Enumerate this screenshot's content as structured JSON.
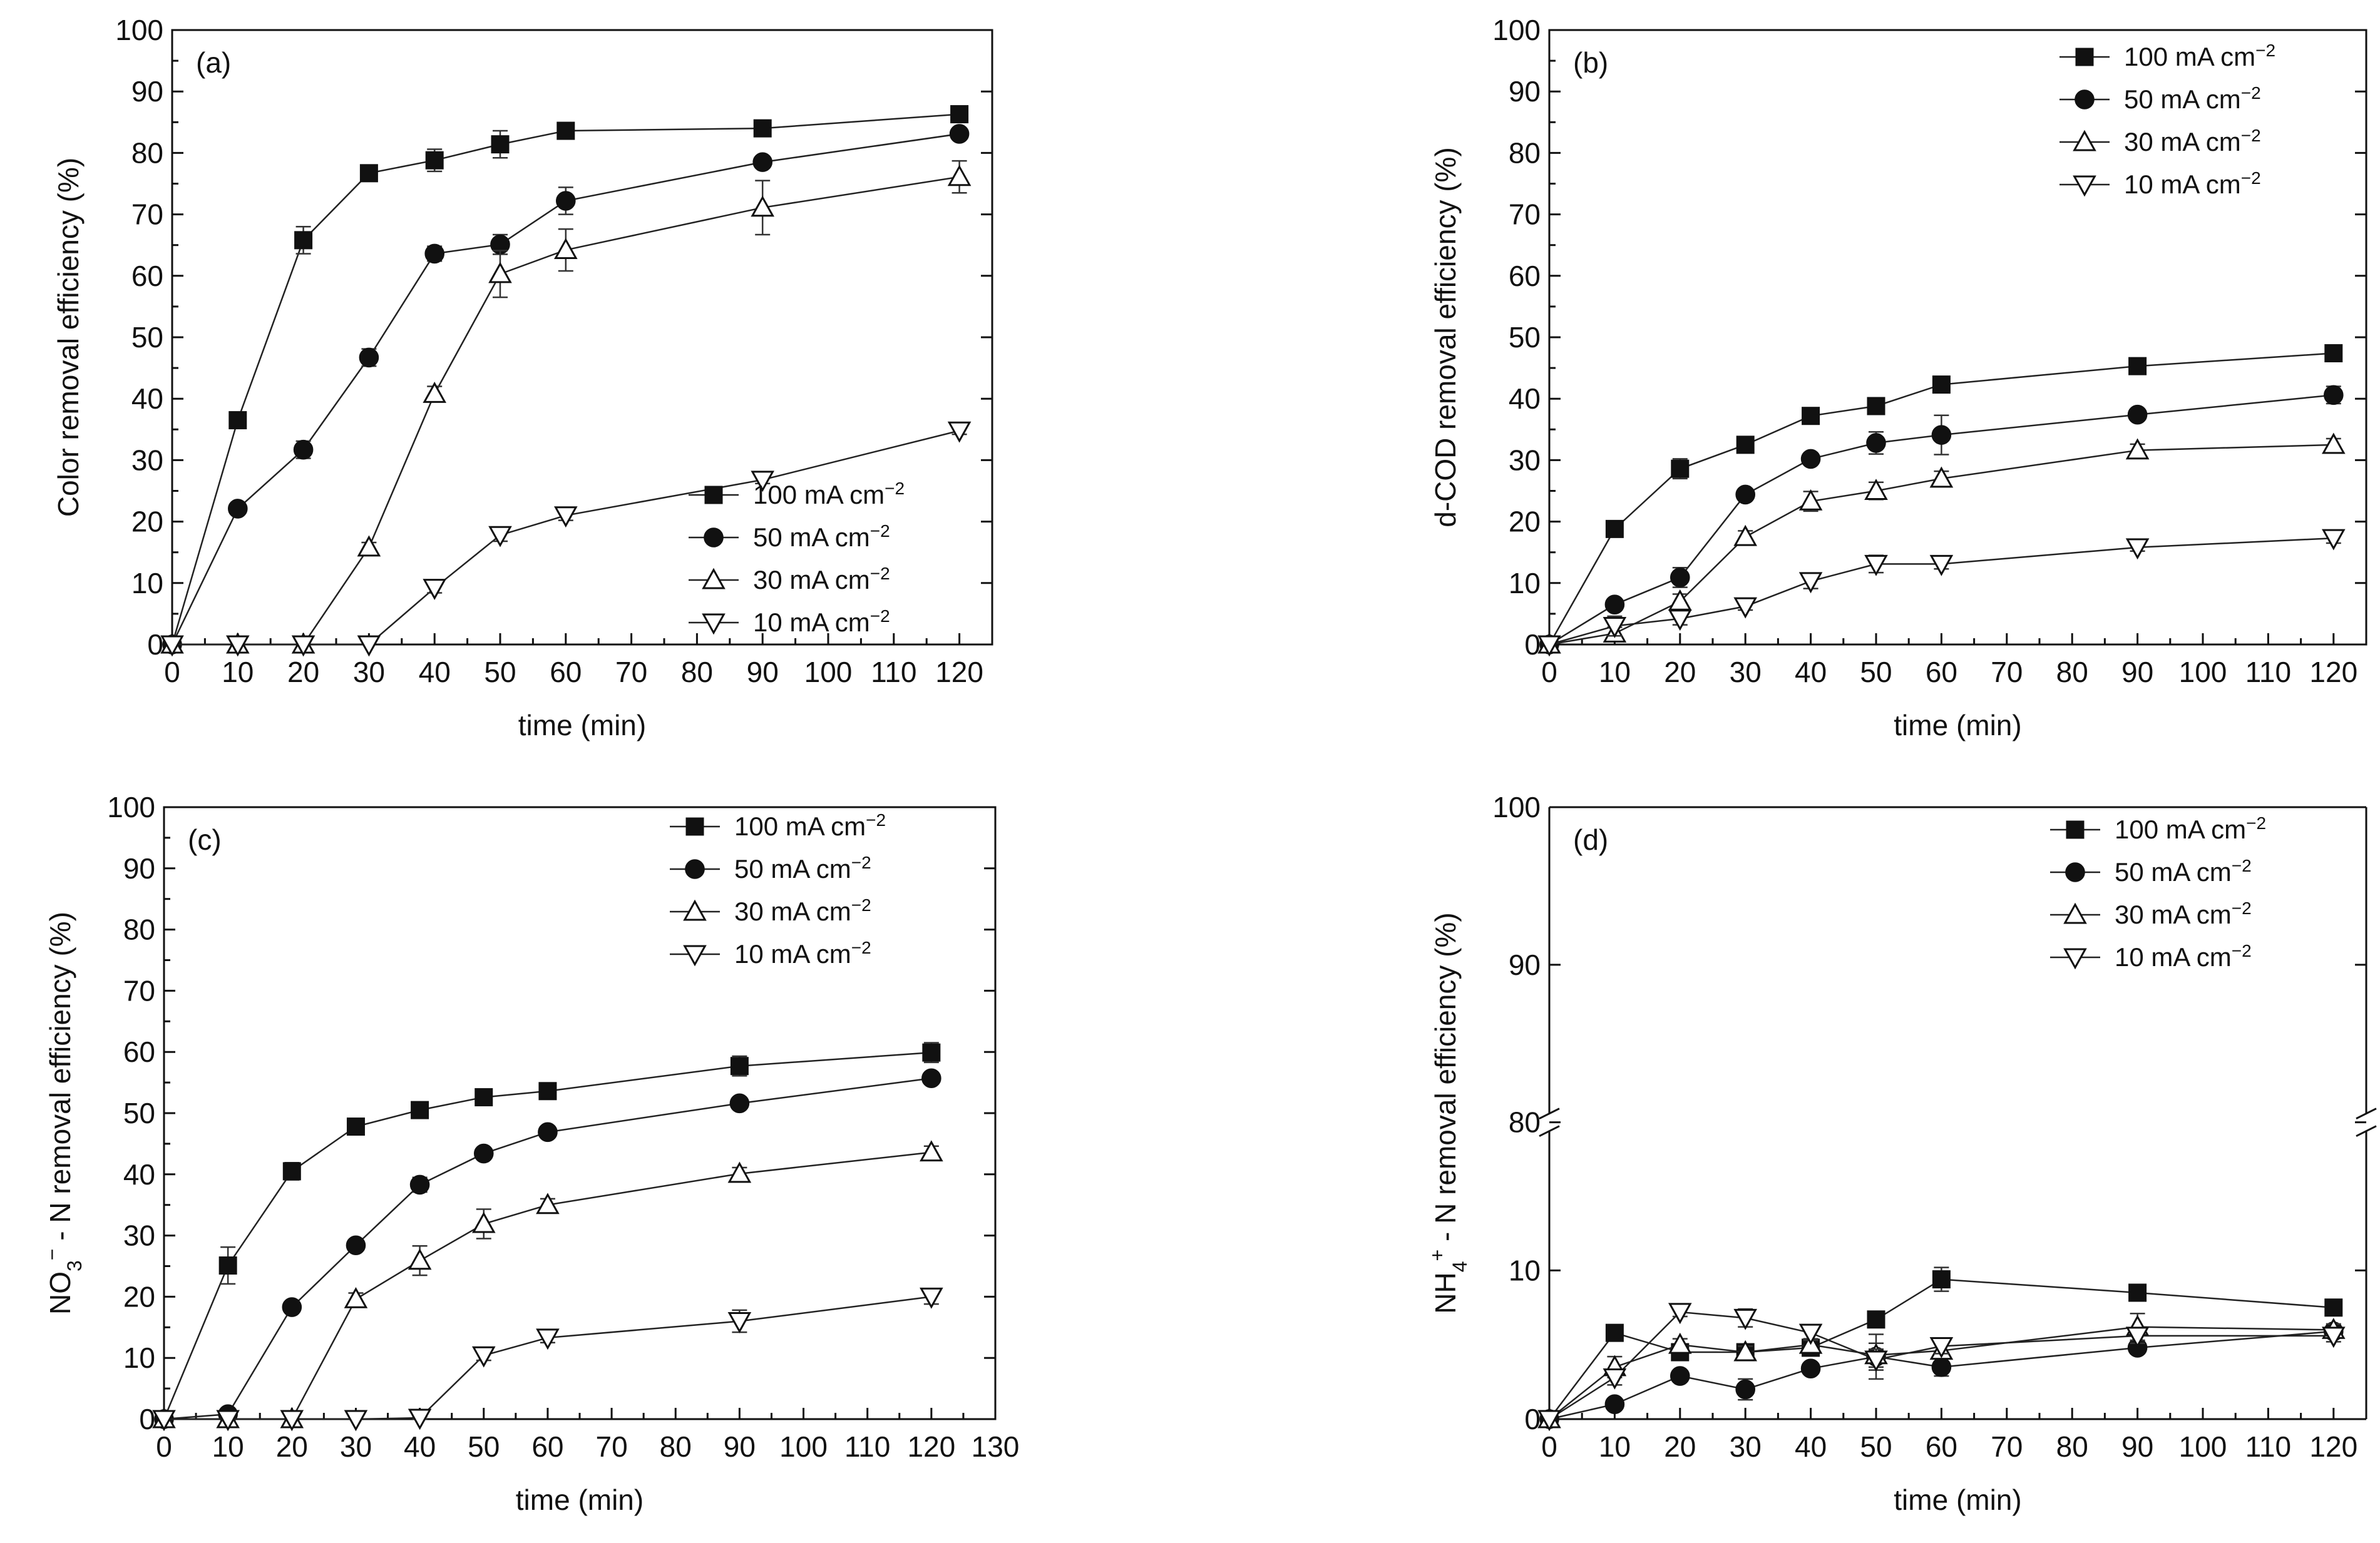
{
  "chart_data": [
    {
      "type": "line",
      "panel_label": "(a)",
      "xlabel": "time (min)",
      "ylabel": "Color removal efficiency (%)",
      "xlim": [
        0,
        125
      ],
      "ylim": [
        0,
        100
      ],
      "x_ticks": [
        0,
        10,
        20,
        30,
        40,
        50,
        60,
        70,
        80,
        90,
        100,
        110,
        120
      ],
      "y_ticks": [
        0,
        10,
        20,
        30,
        40,
        50,
        60,
        70,
        80,
        90,
        100
      ],
      "legend_position": "bottom-right",
      "x": [
        0,
        10,
        20,
        30,
        40,
        50,
        60,
        90,
        120
      ],
      "series": [
        {
          "name": "100 mA cm",
          "sup": "−2",
          "marker": "square",
          "values": [
            0,
            36.5,
            65.8,
            76.7,
            78.8,
            81.4,
            83.6,
            84.0,
            86.3
          ],
          "errors": [
            0,
            0.8,
            2.2,
            0.8,
            1.8,
            2.2,
            0.8,
            0.8,
            1.2
          ]
        },
        {
          "name": "50 mA cm",
          "sup": "−2",
          "marker": "circle",
          "values": [
            0,
            22.1,
            31.7,
            46.7,
            63.6,
            65.1,
            72.2,
            78.5,
            83.1
          ],
          "errors": [
            0,
            0.6,
            1.4,
            1.4,
            1.2,
            1.6,
            2.2,
            0.8,
            0.8
          ]
        },
        {
          "name": "30 mA cm",
          "sup": "−2",
          "marker": "triangle-up",
          "values": [
            0,
            0,
            0,
            15.8,
            40.8,
            60.3,
            64.2,
            71.1,
            76.1
          ],
          "errors": [
            0,
            0,
            0,
            0.8,
            1.2,
            3.8,
            3.4,
            4.4,
            2.6
          ]
        },
        {
          "name": "10 mA cm",
          "sup": "−2",
          "marker": "triangle-down",
          "values": [
            0,
            0,
            0,
            0,
            9.2,
            17.8,
            21.0,
            26.8,
            34.8
          ],
          "errors": [
            0,
            0,
            0,
            0,
            0.8,
            1.0,
            0.8,
            0.6,
            0.6
          ]
        }
      ]
    },
    {
      "type": "line",
      "panel_label": "(b)",
      "xlabel": "time (min)",
      "ylabel": "d-COD removal efficiency (%)",
      "xlim": [
        0,
        125
      ],
      "ylim": [
        0,
        100
      ],
      "x_ticks": [
        0,
        10,
        20,
        30,
        40,
        50,
        60,
        70,
        80,
        90,
        100,
        110,
        120
      ],
      "y_ticks": [
        0,
        10,
        20,
        30,
        40,
        50,
        60,
        70,
        80,
        90,
        100
      ],
      "legend_position": "top-right",
      "x": [
        0,
        10,
        20,
        30,
        40,
        50,
        60,
        90,
        120
      ],
      "series": [
        {
          "name": "100 mA cm",
          "sup": "−2",
          "marker": "square",
          "values": [
            0,
            18.8,
            28.6,
            32.5,
            37.2,
            38.8,
            42.3,
            45.3,
            47.4
          ],
          "errors": [
            0,
            1.2,
            1.6,
            0.8,
            0.8,
            0.8,
            0.8,
            0.6,
            0.6
          ]
        },
        {
          "name": "50 mA cm",
          "sup": "−2",
          "marker": "circle",
          "values": [
            0,
            6.5,
            10.9,
            24.4,
            30.2,
            32.8,
            34.1,
            37.4,
            40.6
          ],
          "errors": [
            0,
            0.6,
            1.6,
            0.8,
            0.8,
            1.8,
            3.2,
            0.8,
            1.4
          ]
        },
        {
          "name": "30 mA cm",
          "sup": "−2",
          "marker": "triangle-up",
          "values": [
            0,
            1.8,
            7.0,
            17.5,
            23.3,
            25.0,
            27.0,
            31.6,
            32.5
          ],
          "errors": [
            0,
            1.0,
            1.2,
            1.0,
            1.6,
            1.4,
            1.2,
            1.0,
            1.0
          ]
        },
        {
          "name": "10 mA cm",
          "sup": "−2",
          "marker": "triangle-down",
          "values": [
            0,
            3.0,
            4.2,
            6.2,
            10.3,
            13.1,
            13.1,
            15.8,
            17.3
          ],
          "errors": [
            0,
            1.6,
            1.0,
            0.6,
            1.2,
            1.4,
            0.8,
            0.6,
            0.8
          ]
        }
      ]
    },
    {
      "type": "line",
      "panel_label": "(c)",
      "xlabel": "time (min)",
      "ylabel_main": "NO",
      "ylabel_sub": "3",
      "ylabel_sup": "−",
      "ylabel_rest": " - N removal efficiency (%)",
      "xlim": [
        0,
        130
      ],
      "ylim": [
        0,
        100
      ],
      "x_ticks": [
        0,
        10,
        20,
        30,
        40,
        50,
        60,
        70,
        80,
        90,
        100,
        110,
        120,
        130
      ],
      "y_ticks": [
        0,
        10,
        20,
        30,
        40,
        50,
        60,
        70,
        80,
        90,
        100
      ],
      "legend_position": "top-right",
      "x": [
        0,
        10,
        20,
        30,
        40,
        50,
        60,
        90,
        120
      ],
      "series": [
        {
          "name": "100 mA cm",
          "sup": "−2",
          "marker": "square",
          "values": [
            0,
            25.1,
            40.5,
            47.8,
            50.5,
            52.6,
            53.6,
            57.7,
            59.9
          ],
          "errors": [
            0,
            3.0,
            1.4,
            0.8,
            0.8,
            1.0,
            0.8,
            1.6,
            1.6
          ]
        },
        {
          "name": "50 mA cm",
          "sup": "−2",
          "marker": "circle",
          "values": [
            0,
            0.8,
            18.3,
            28.4,
            38.3,
            43.4,
            46.9,
            51.6,
            55.7
          ],
          "errors": [
            0,
            0.4,
            0.8,
            0.8,
            1.2,
            0.8,
            0.8,
            0.8,
            0.8
          ]
        },
        {
          "name": "30 mA cm",
          "sup": "−2",
          "marker": "triangle-up",
          "values": [
            0,
            0,
            0,
            19.6,
            25.9,
            31.9,
            35.0,
            40.1,
            43.6
          ],
          "errors": [
            0,
            0,
            0,
            1.0,
            2.4,
            2.4,
            1.0,
            1.0,
            1.0
          ]
        },
        {
          "name": "10 mA cm",
          "sup": "−2",
          "marker": "triangle-down",
          "values": [
            0,
            0,
            0,
            0,
            0.2,
            10.4,
            13.3,
            16.0,
            20.0
          ],
          "errors": [
            0,
            0,
            0,
            0,
            0.2,
            0.8,
            0.8,
            1.8,
            1.2
          ]
        }
      ]
    },
    {
      "type": "line",
      "panel_label": "(d)",
      "xlabel": "time (min)",
      "ylabel_main": "NH",
      "ylabel_sub": "4",
      "ylabel_sup": "+",
      "ylabel_rest": " - N removal efficiency (%)",
      "xlim": [
        0,
        125
      ],
      "ylim": [
        0,
        100
      ],
      "axis_break": [
        18,
        80
      ],
      "x_ticks": [
        0,
        10,
        20,
        30,
        40,
        50,
        60,
        70,
        80,
        90,
        100,
        110,
        120
      ],
      "y_ticks": [
        0,
        10,
        80,
        90,
        100
      ],
      "legend_position": "top-right",
      "x": [
        0,
        10,
        20,
        30,
        40,
        50,
        60,
        90,
        120
      ],
      "series": [
        {
          "name": "100 mA cm",
          "sup": "−2",
          "marker": "square",
          "values": [
            0,
            5.8,
            4.5,
            4.5,
            4.8,
            6.7,
            9.4,
            8.5,
            7.5
          ],
          "errors": [
            0,
            0.3,
            0.5,
            0.4,
            0.5,
            0.5,
            0.8,
            0.4,
            0.4
          ]
        },
        {
          "name": "50 mA cm",
          "sup": "−2",
          "marker": "circle",
          "values": [
            0,
            1.0,
            2.9,
            2.0,
            3.4,
            4.2,
            3.5,
            4.8,
            5.9
          ],
          "errors": [
            0,
            0.2,
            0.3,
            0.7,
            0.3,
            1.5,
            0.6,
            0.4,
            0.4
          ]
        },
        {
          "name": "30 mA cm",
          "sup": "−2",
          "marker": "triangle-up",
          "values": [
            0,
            3.5,
            5.0,
            4.5,
            5.0,
            4.3,
            4.6,
            6.2,
            6.0
          ],
          "errors": [
            0,
            0.7,
            0.4,
            0.4,
            0.4,
            0.8,
            0.5,
            0.9,
            0.4
          ]
        },
        {
          "name": "10 mA cm",
          "sup": "−2",
          "marker": "triangle-down",
          "values": [
            0,
            2.8,
            7.2,
            6.8,
            5.8,
            4.0,
            4.9,
            5.6,
            5.6
          ],
          "errors": [
            0,
            0.5,
            0.3,
            0.6,
            0.5,
            0.7,
            0.5,
            0.5,
            0.4
          ]
        }
      ]
    }
  ]
}
